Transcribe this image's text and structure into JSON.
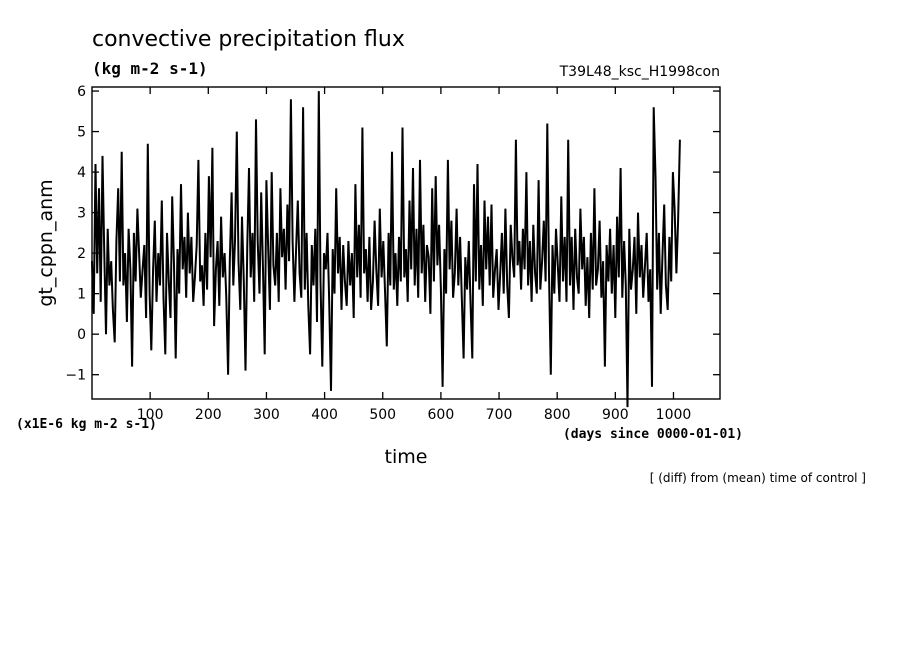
{
  "chart_data": {
    "type": "line",
    "title": "convective precipitation flux",
    "units": "(kg m-2 s-1)",
    "run_label": "T39L48_ksc_H1998con",
    "xlabel": "time",
    "x_unit_note": "(days since 0000-01-01)",
    "ylabel": "gt_cppn_anm",
    "y_scale_note": "(x1E-6 kg m-2 s-1)",
    "footnote": "[ (diff) from (mean) time of control ]",
    "xlim": [
      0,
      1080
    ],
    "ylim": [
      -1.6,
      6.1
    ],
    "x_ticks": [
      100,
      200,
      300,
      400,
      500,
      600,
      700,
      800,
      900,
      1000
    ],
    "y_ticks": [
      -1,
      0,
      1,
      2,
      3,
      4,
      5,
      6
    ],
    "x_tick_labels": [
      "100",
      "200",
      "300",
      "400",
      "500",
      "600",
      "700",
      "800",
      "900",
      "1000"
    ],
    "y_tick_labels": [
      "−1",
      "0",
      "1",
      "2",
      "3",
      "4",
      "5",
      "6"
    ],
    "grid": false,
    "series": [
      {
        "x_start": 0,
        "x_step": 3,
        "values": [
          1.8,
          0.5,
          4.2,
          1.5,
          3.6,
          0.8,
          4.4,
          2.1,
          0.0,
          2.6,
          1.2,
          1.8,
          0.6,
          -0.2,
          2.3,
          3.6,
          1.3,
          4.5,
          1.2,
          2.0,
          0.3,
          2.6,
          1.6,
          -0.8,
          2.5,
          1.3,
          3.1,
          2.0,
          0.9,
          1.6,
          2.2,
          0.4,
          4.7,
          1.0,
          -0.4,
          1.6,
          2.8,
          0.8,
          2.0,
          1.2,
          3.3,
          0.9,
          -0.5,
          2.5,
          1.3,
          0.4,
          3.4,
          1.7,
          -0.6,
          2.1,
          1.0,
          3.7,
          1.6,
          2.4,
          0.9,
          3.0,
          1.5,
          2.4,
          0.8,
          1.4,
          2.2,
          4.3,
          1.3,
          1.7,
          0.7,
          2.5,
          1.1,
          3.9,
          1.9,
          4.6,
          0.2,
          1.6,
          2.3,
          0.7,
          2.9,
          1.4,
          2.0,
          0.9,
          -1.0,
          1.8,
          3.5,
          1.2,
          2.3,
          5.0,
          1.8,
          0.6,
          2.9,
          1.3,
          -0.9,
          2.2,
          4.1,
          1.4,
          2.5,
          0.8,
          5.3,
          2.3,
          1.0,
          3.5,
          1.6,
          -0.5,
          3.8,
          2.1,
          0.6,
          4.0,
          1.7,
          1.2,
          2.5,
          0.8,
          3.6,
          1.9,
          2.6,
          1.1,
          3.2,
          1.8,
          5.8,
          2.3,
          0.8,
          2.1,
          3.3,
          1.5,
          0.9,
          5.6,
          1.1,
          2.5,
          0.7,
          -0.5,
          2.2,
          1.2,
          2.6,
          0.3,
          6.0,
          1.3,
          -0.8,
          2.0,
          1.6,
          2.5,
          0.8,
          -1.4,
          2.1,
          1.0,
          3.6,
          1.5,
          2.4,
          0.6,
          2.2,
          1.3,
          0.7,
          2.3,
          1.2,
          2.0,
          0.4,
          3.7,
          1.4,
          2.7,
          0.9,
          5.1,
          1.5,
          2.1,
          0.8,
          2.4,
          0.6,
          1.3,
          2.8,
          1.6,
          0.7,
          3.1,
          1.4,
          2.3,
          1.0,
          -0.3,
          2.5,
          1.2,
          4.5,
          1.1,
          2.0,
          0.7,
          2.4,
          1.3,
          5.1,
          1.4,
          2.1,
          0.8,
          3.3,
          1.6,
          4.1,
          1.2,
          2.6,
          0.9,
          4.3,
          1.5,
          2.7,
          0.8,
          2.2,
          1.9,
          0.5,
          3.6,
          1.3,
          3.9,
          1.7,
          2.7,
          1.1,
          -1.3,
          2.1,
          1.0,
          4.3,
          1.6,
          2.8,
          0.9,
          1.5,
          3.1,
          1.2,
          2.4,
          0.9,
          -0.6,
          1.9,
          1.1,
          2.3,
          0.8,
          -0.6,
          3.7,
          1.3,
          4.2,
          1.1,
          2.2,
          0.7,
          3.3,
          1.6,
          2.9,
          1.2,
          3.2,
          0.9,
          1.6,
          2.1,
          0.6,
          1.5,
          2.5,
          1.0,
          3.1,
          1.2,
          0.4,
          2.7,
          1.9,
          1.4,
          4.8,
          1.7,
          2.3,
          1.1,
          2.6,
          1.6,
          4.0,
          1.2,
          2.3,
          0.8,
          2.7,
          1.5,
          1.0,
          3.8,
          1.1,
          1.8,
          2.8,
          1.3,
          5.2,
          1.5,
          -1.0,
          2.2,
          1.0,
          2.6,
          1.7,
          0.8,
          3.4,
          1.3,
          2.4,
          0.8,
          4.8,
          1.2,
          2.4,
          0.6,
          2.6,
          1.4,
          1.0,
          3.1,
          1.6,
          2.4,
          0.7,
          1.9,
          0.4,
          2.5,
          1.1,
          3.6,
          1.2,
          1.6,
          2.8,
          0.9,
          1.8,
          -0.8,
          2.2,
          1.3,
          2.6,
          1.0,
          2.2,
          0.4,
          2.9,
          1.4,
          4.1,
          0.9,
          2.3,
          1.2,
          -1.8,
          2.6,
          1.1,
          1.6,
          2.4,
          0.5,
          3.0,
          1.4,
          2.2,
          0.9,
          1.7,
          2.5,
          0.8,
          1.6,
          -1.3,
          5.6,
          3.9,
          1.1,
          2.5,
          0.5,
          1.9,
          3.2,
          1.2,
          0.6,
          2.4,
          1.3,
          4.0,
          3.1,
          1.5,
          2.8,
          4.8
        ]
      }
    ]
  }
}
